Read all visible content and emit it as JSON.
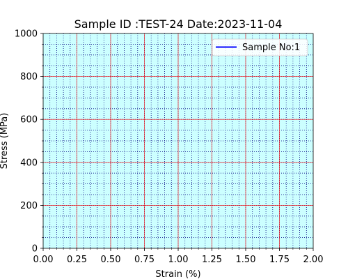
{
  "chart_data": {
    "type": "line",
    "title": "Sample ID :TEST-24 Date:2023-11-04",
    "xlabel": "Strain (%)",
    "ylabel": "Stress (MPa)",
    "xlim": [
      0,
      2
    ],
    "ylim": [
      0,
      1000
    ],
    "x_ticks": [
      0,
      0.25,
      0.5,
      0.75,
      1,
      1.25,
      1.5,
      1.75,
      2
    ],
    "x_tick_labels": [
      "0.00",
      "0.25",
      "0.50",
      "0.75",
      "1.00",
      "1.25",
      "1.50",
      "1.75",
      "2.00"
    ],
    "y_ticks": [
      0,
      200,
      400,
      600,
      800,
      1000
    ],
    "y_tick_labels": [
      "0",
      "200",
      "400",
      "600",
      "800",
      "1000"
    ],
    "x_minor_step": 0.05,
    "y_minor_step": 50,
    "grid": true,
    "legend_position": "top-right",
    "series": [
      {
        "name": "Sample No:1",
        "x": [],
        "y": []
      }
    ],
    "colors": {
      "background": "#ccffff",
      "major_grid": "#ff0000",
      "minor_grid": "#000080",
      "series_line": "#0000ff",
      "axes": "#000000"
    }
  }
}
